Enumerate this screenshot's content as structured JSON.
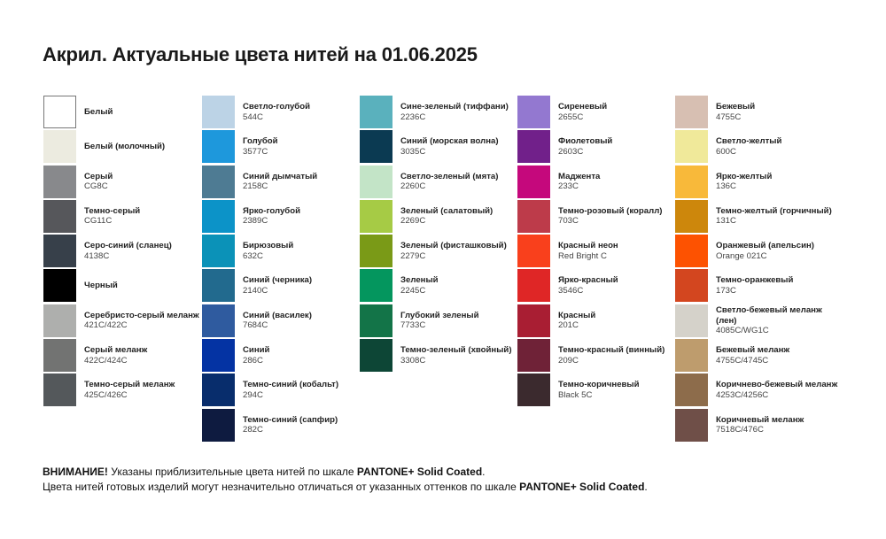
{
  "title": "Акрил. Актуальные цвета нитей на 01.06.2025",
  "columns": [
    [
      {
        "name": "Белый",
        "code": "",
        "color": "#ffffff",
        "border": true
      },
      {
        "name": "Белый (молочный)",
        "code": "",
        "color": "#ecebe0"
      },
      {
        "name": "Серый",
        "code": "CG8C",
        "color": "#88898c"
      },
      {
        "name": "Темно-серый",
        "code": "CG11C",
        "color": "#56575b"
      },
      {
        "name": "Серо-синий (сланец)",
        "code": "4138C",
        "color": "#37404a"
      },
      {
        "name": "Черный",
        "code": "",
        "color": "#000000"
      },
      {
        "name": "Серебристо-серый меланж",
        "code": "421C/422C",
        "color": "#aeafad"
      },
      {
        "name": "Серый меланж",
        "code": "422C/424C",
        "color": "#727372"
      },
      {
        "name": "Темно-серый меланж",
        "code": "425C/426C",
        "color": "#54585b"
      }
    ],
    [
      {
        "name": "Светло-голубой",
        "code": "544C",
        "color": "#bcd3e6"
      },
      {
        "name": "Голубой",
        "code": "3577C",
        "color": "#1e98dc"
      },
      {
        "name": "Синий дымчатый",
        "code": "2158C",
        "color": "#4e7b93"
      },
      {
        "name": "Ярко-голубой",
        "code": "2389C",
        "color": "#0c93c8"
      },
      {
        "name": "Бирюзовый",
        "code": "632C",
        "color": "#0b92b8"
      },
      {
        "name": "Синий (черника)",
        "code": "2140C",
        "color": "#226a8e"
      },
      {
        "name": "Синий (василек)",
        "code": "7684C",
        "color": "#2f5b9f"
      },
      {
        "name": "Синий",
        "code": "286C",
        "color": "#0433a3"
      },
      {
        "name": "Темно-синий (кобальт)",
        "code": "294C",
        "color": "#082d6c"
      },
      {
        "name": "Темно-синий (сапфир)",
        "code": "282C",
        "color": "#0e1b40"
      }
    ],
    [
      {
        "name": "Сине-зеленый (тиффани)",
        "code": "2236C",
        "color": "#5ab1bd"
      },
      {
        "name": "Синий (морская волна)",
        "code": "3035C",
        "color": "#0b3a52"
      },
      {
        "name": "Светло-зеленый (мята)",
        "code": "2260C",
        "color": "#c3e4c7"
      },
      {
        "name": "Зеленый (салатовый)",
        "code": "2269C",
        "color": "#a6cb45"
      },
      {
        "name": "Зеленый (фисташковый)",
        "code": "2279C",
        "color": "#7a9a17"
      },
      {
        "name": "Зеленый",
        "code": "2245C",
        "color": "#04965e"
      },
      {
        "name": "Глубокий зеленый",
        "code": "7733C",
        "color": "#137448"
      },
      {
        "name": "Темно-зеленый (хвойный)",
        "code": "3308C",
        "color": "#0d4636"
      }
    ],
    [
      {
        "name": "Сиреневый",
        "code": "2655C",
        "color": "#9378d0"
      },
      {
        "name": "Фиолетовый",
        "code": "2603C",
        "color": "#71208a"
      },
      {
        "name": "Маджента",
        "code": "233C",
        "color": "#c5087c"
      },
      {
        "name": "Темно-розовый (коралл)",
        "code": "703C",
        "color": "#bd3b4a"
      },
      {
        "name": "Красный неон",
        "code": "Red Bright C",
        "color": "#f9401c"
      },
      {
        "name": "Ярко-красный",
        "code": "3546C",
        "color": "#df2626"
      },
      {
        "name": "Красный",
        "code": "201C",
        "color": "#a91e33"
      },
      {
        "name": "Темно-красный (винный)",
        "code": "209C",
        "color": "#6f2237"
      },
      {
        "name": "Темно-коричневый",
        "code": "Black 5C",
        "color": "#3b2a2e"
      }
    ],
    [
      {
        "name": "Бежевый",
        "code": "4755C",
        "color": "#d7bfb2"
      },
      {
        "name": "Светло-желтый",
        "code": "600C",
        "color": "#f0e99a"
      },
      {
        "name": "Ярко-желтый",
        "code": "136C",
        "color": "#f8b93a"
      },
      {
        "name": "Темно-желтый (горчичный)",
        "code": "131C",
        "color": "#cd870c"
      },
      {
        "name": "Оранжевый (апельсин)",
        "code": "Orange 021C",
        "color": "#fd5201"
      },
      {
        "name": "Темно-оранжевый",
        "code": "173C",
        "color": "#d3461f"
      },
      {
        "name": "Светло-бежевый меланж (лен)",
        "code": "4085C/WG1C",
        "color": "#d5d2ca"
      },
      {
        "name": "Бежевый меланж",
        "code": "4755C/4745C",
        "color": "#be9c6d"
      },
      {
        "name": "Коричнево-бежевый меланж",
        "code": "4253C/4256C",
        "color": "#8d6c4b"
      },
      {
        "name": "Коричневый меланж",
        "code": "7518C/476C",
        "color": "#6f4f48"
      }
    ]
  ],
  "footer": {
    "line1_bold": "ВНИМАНИЕ!",
    "line1_text": " Указаны приблизительные цвета нитей по шкале ",
    "line1_scale": "PANTONE+ Solid Coated",
    "line1_end": ".",
    "line2_text": "Цвета нитей готовых изделий могут незначительно отличаться от указанных оттенков по шкале ",
    "line2_scale": "PANTONE+ Solid Coated",
    "line2_end": "."
  }
}
